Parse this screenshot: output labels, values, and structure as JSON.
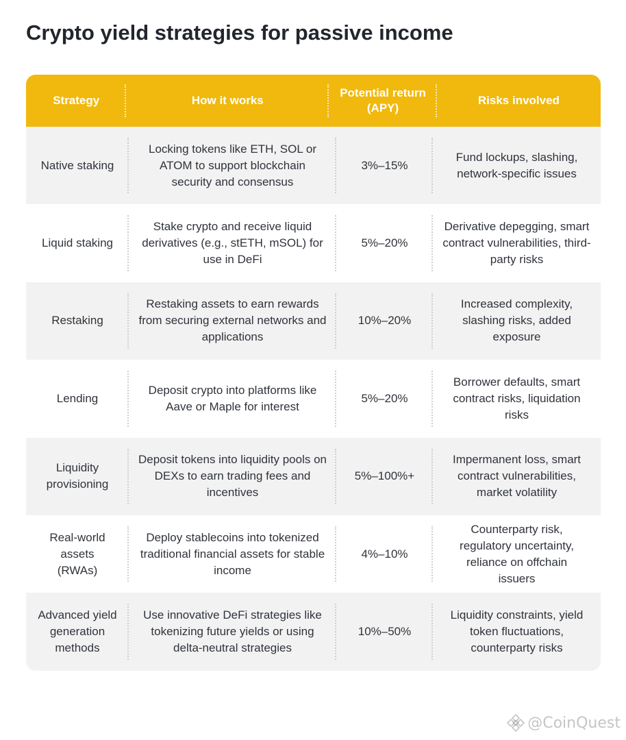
{
  "title": "Crypto yield strategies for passive income",
  "table": {
    "headers": [
      "Strategy",
      "How it works",
      "Potential return (APY)",
      "Risks involved"
    ],
    "rows": [
      {
        "strategy": "Native staking",
        "how": "Locking tokens like ETH, SOL or ATOM to support blockchain security and consensus",
        "apy": "3%–15%",
        "risks": "Fund lockups, slashing, network-specific issues"
      },
      {
        "strategy": "Liquid staking",
        "how": "Stake crypto and receive liquid derivatives (e.g., stETH, mSOL) for use in DeFi",
        "apy": "5%–20%",
        "risks": "Derivative depegging, smart contract vulnerabilities, third-party risks"
      },
      {
        "strategy": "Restaking",
        "how": "Restaking assets to earn rewards from securing external networks and applications",
        "apy": "10%–20%",
        "risks": "Increased complexity, slashing risks, added exposure"
      },
      {
        "strategy": "Lending",
        "how": "Deposit crypto into platforms like Aave or Maple for interest",
        "apy": "5%–20%",
        "risks": "Borrower defaults, smart contract risks, liquidation risks"
      },
      {
        "strategy": "Liquidity provisioning",
        "how": "Deposit tokens into liquidity pools on DEXs to earn trading fees and incentives",
        "apy": "5%–100%+",
        "risks": "Impermanent loss, smart contract vulnerabilities, market volatility"
      },
      {
        "strategy": "Real-world assets (RWAs)",
        "how": "Deploy stablecoins into tokenized traditional financial assets for stable income",
        "apy": "4%–10%",
        "risks": "Counterparty risk, regulatory uncertainty, reliance on offchain issuers"
      },
      {
        "strategy": "Advanced yield generation methods",
        "how": "Use innovative DeFi strategies like tokenizing future yields or using delta-neutral strategies",
        "apy": "10%–50%",
        "risks": "Liquidity constraints, yield token fluctuations, counterparty risks"
      }
    ]
  },
  "watermark": {
    "text": "@CoinQuest",
    "icon": "binance-logo-icon"
  },
  "colors": {
    "header_bg": "#f1b90d",
    "row_shade": "#f2f2f2",
    "title_text": "#22262d"
  }
}
